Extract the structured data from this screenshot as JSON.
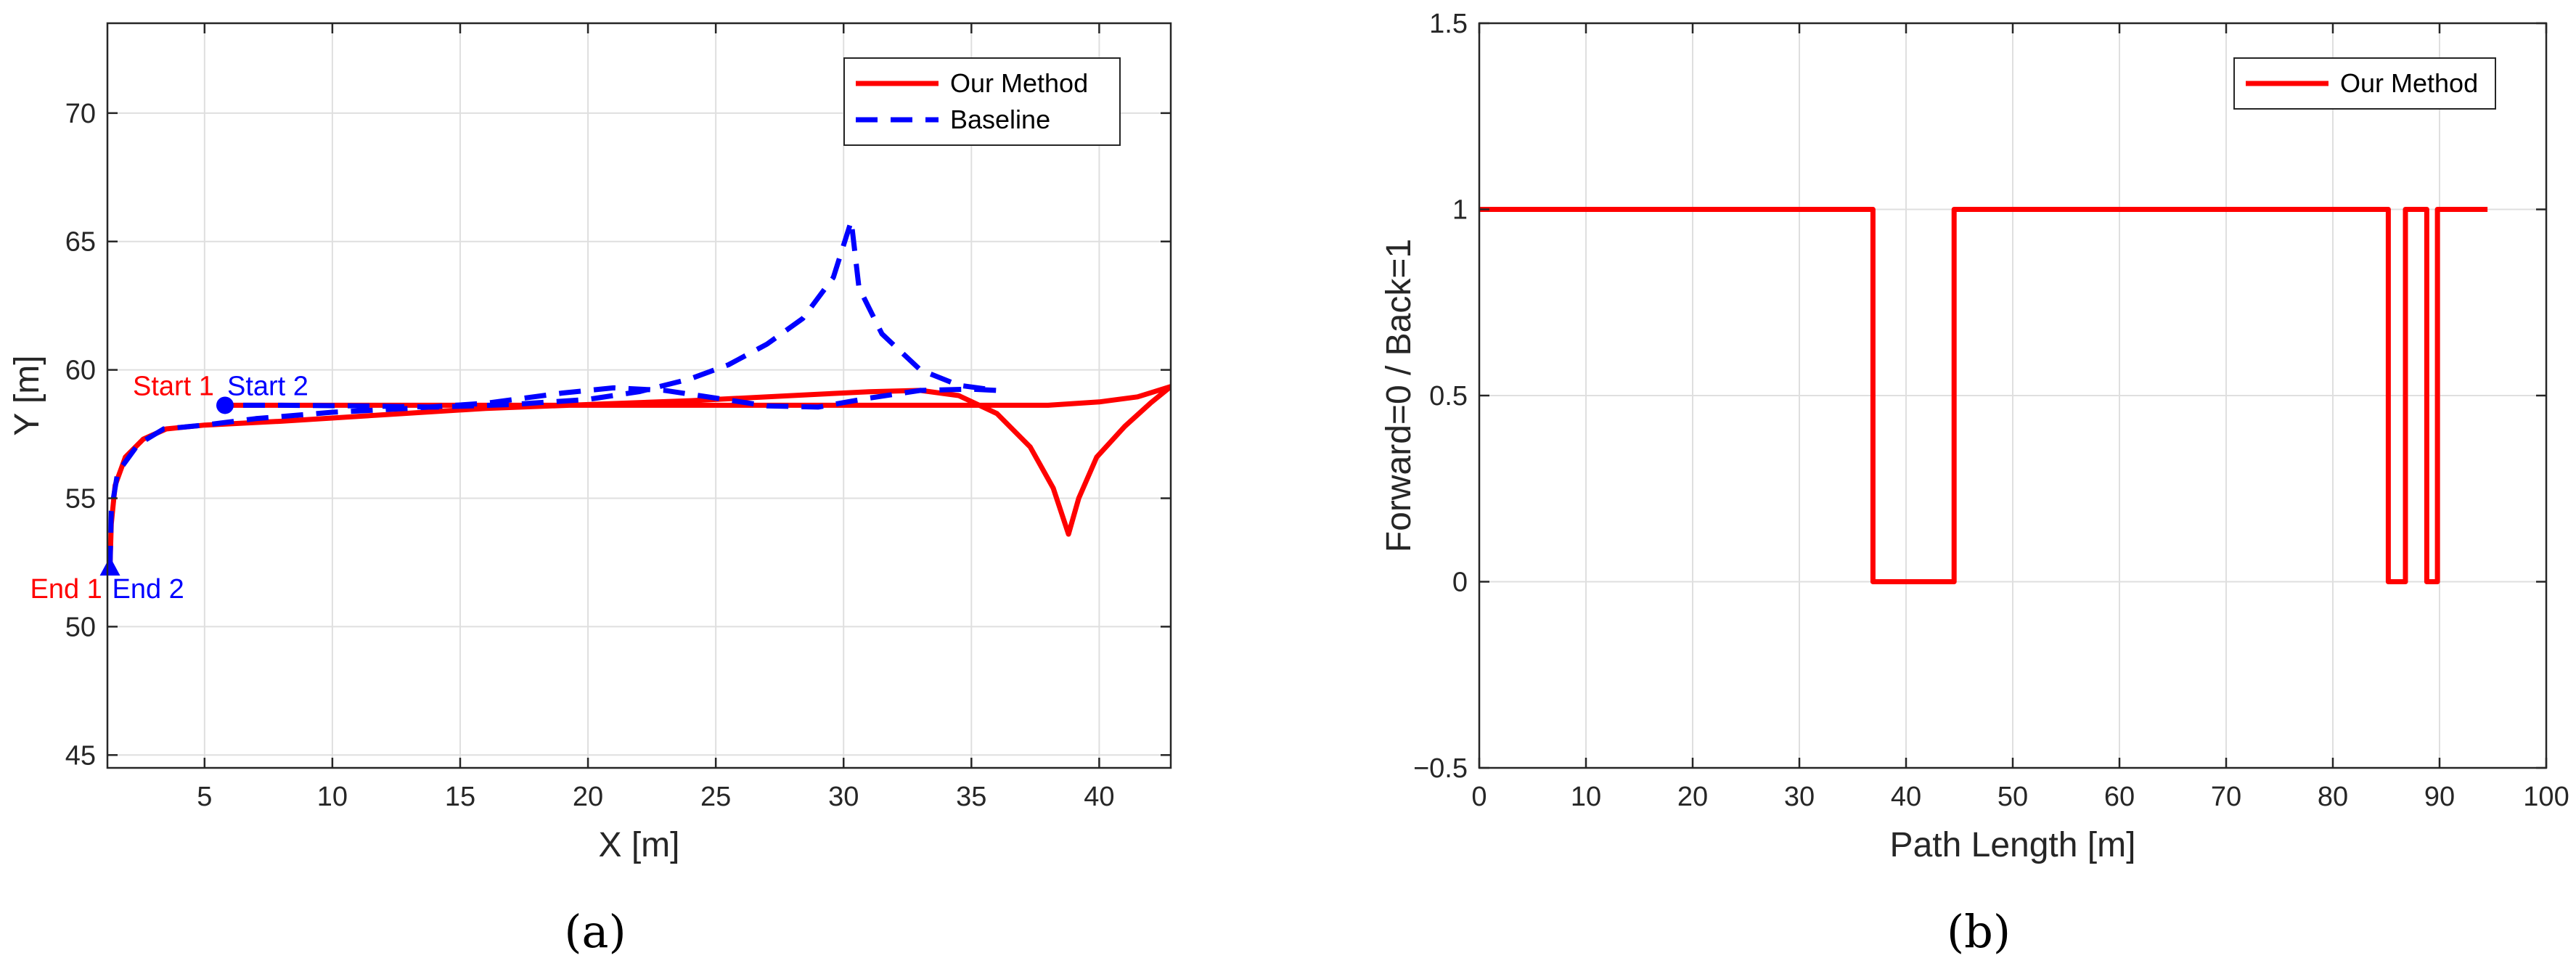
{
  "colors": {
    "our_method": "#ff0000",
    "baseline": "#0000ff",
    "axis": "#262626",
    "grid": "#dfdfdf"
  },
  "chart_data": [
    {
      "type": "line",
      "panel_label": "(a)",
      "xlabel": "X [m]",
      "ylabel": "Y [m]",
      "xlim": [
        1.2,
        42.8
      ],
      "ylim": [
        44.5,
        73.5
      ],
      "xticks": [
        5,
        10,
        15,
        20,
        25,
        30,
        35,
        40
      ],
      "yticks": [
        45,
        50,
        55,
        60,
        65,
        70
      ],
      "grid": true,
      "legend_position": "top-right",
      "series": [
        {
          "name": "Our Method",
          "style": "solid",
          "points": [
            [
              1.3,
              52.3
            ],
            [
              1.35,
              54.0
            ],
            [
              1.5,
              55.5
            ],
            [
              1.9,
              56.6
            ],
            [
              2.6,
              57.3
            ],
            [
              3.5,
              57.7
            ],
            [
              5,
              57.85
            ],
            [
              8,
              58.0
            ],
            [
              12,
              58.25
            ],
            [
              16,
              58.5
            ],
            [
              20,
              58.65
            ],
            [
              24,
              58.8
            ],
            [
              28,
              59.0
            ],
            [
              31,
              59.15
            ],
            [
              33,
              59.2
            ],
            [
              34.5,
              59.0
            ],
            [
              36,
              58.3
            ],
            [
              37.3,
              57.0
            ],
            [
              38.2,
              55.4
            ],
            [
              38.8,
              53.6
            ],
            [
              39.2,
              55.0
            ],
            [
              39.9,
              56.6
            ],
            [
              41.0,
              57.8
            ],
            [
              42.0,
              58.7
            ],
            [
              42.8,
              59.35
            ],
            [
              41.5,
              58.95
            ],
            [
              40,
              58.75
            ],
            [
              38,
              58.62
            ],
            [
              35,
              58.62
            ],
            [
              30,
              58.62
            ],
            [
              25,
              58.62
            ],
            [
              20,
              58.62
            ],
            [
              15,
              58.62
            ],
            [
              10,
              58.62
            ],
            [
              5.8,
              58.62
            ]
          ]
        },
        {
          "name": "Baseline",
          "style": "dashed",
          "points": [
            [
              1.3,
              52.3
            ],
            [
              1.35,
              54.5
            ],
            [
              1.6,
              56.0
            ],
            [
              2.4,
              57.1
            ],
            [
              3.4,
              57.7
            ],
            [
              5,
              57.85
            ],
            [
              7,
              58.1
            ],
            [
              10,
              58.35
            ],
            [
              13,
              58.5
            ],
            [
              16,
              58.7
            ],
            [
              19,
              59.1
            ],
            [
              21,
              59.3
            ],
            [
              23,
              59.2
            ],
            [
              25,
              58.9
            ],
            [
              27,
              58.6
            ],
            [
              29,
              58.55
            ],
            [
              31,
              58.9
            ],
            [
              33,
              59.2
            ],
            [
              35,
              59.25
            ],
            [
              36,
              59.2
            ],
            [
              34.5,
              59.4
            ],
            [
              33,
              60.0
            ],
            [
              31.5,
              61.4
            ],
            [
              30.6,
              63.2
            ],
            [
              30.3,
              65.8
            ],
            [
              29.6,
              63.6
            ],
            [
              28.4,
              62.0
            ],
            [
              27,
              61.0
            ],
            [
              25.5,
              60.2
            ],
            [
              24,
              59.65
            ],
            [
              22,
              59.15
            ],
            [
              20,
              58.85
            ],
            [
              17,
              58.65
            ],
            [
              14,
              58.55
            ],
            [
              11,
              58.6
            ],
            [
              8,
              58.62
            ],
            [
              5.8,
              58.62
            ]
          ]
        }
      ],
      "markers": [
        {
          "label": "Start 1",
          "x": 5.8,
          "y": 58.62,
          "shape": "circle",
          "color": "#ff0000"
        },
        {
          "label": "Start 2",
          "x": 5.8,
          "y": 58.62,
          "shape": "circle",
          "color": "#0000ff"
        },
        {
          "label": "End 1",
          "x": 1.3,
          "y": 52.3,
          "shape": "triangle",
          "color": "#ff0000"
        },
        {
          "label": "End 2",
          "x": 1.3,
          "y": 52.3,
          "shape": "triangle",
          "color": "#0000ff"
        }
      ]
    },
    {
      "type": "line",
      "panel_label": "(b)",
      "xlabel": "Path Length [m]",
      "ylabel": "Forward=0 / Back=1",
      "xlim": [
        0,
        100
      ],
      "ylim": [
        -0.5,
        1.5
      ],
      "xticks": [
        0,
        10,
        20,
        30,
        40,
        50,
        60,
        70,
        80,
        90,
        100
      ],
      "yticks": [
        -0.5,
        0,
        0.5,
        1,
        1.5
      ],
      "ytick_labels": [
        "−0.5",
        "0",
        "0.5",
        "1",
        "1.5"
      ],
      "grid": true,
      "legend_position": "top-right",
      "series": [
        {
          "name": "Our Method",
          "style": "solid",
          "points": [
            [
              0,
              1
            ],
            [
              36.9,
              1
            ],
            [
              36.9,
              0
            ],
            [
              44.5,
              0
            ],
            [
              44.5,
              1
            ],
            [
              85.2,
              1
            ],
            [
              85.2,
              0
            ],
            [
              86.8,
              0
            ],
            [
              86.8,
              1
            ],
            [
              88.8,
              1
            ],
            [
              88.8,
              0
            ],
            [
              89.8,
              0
            ],
            [
              89.8,
              1
            ],
            [
              94.5,
              1
            ]
          ]
        }
      ]
    }
  ]
}
